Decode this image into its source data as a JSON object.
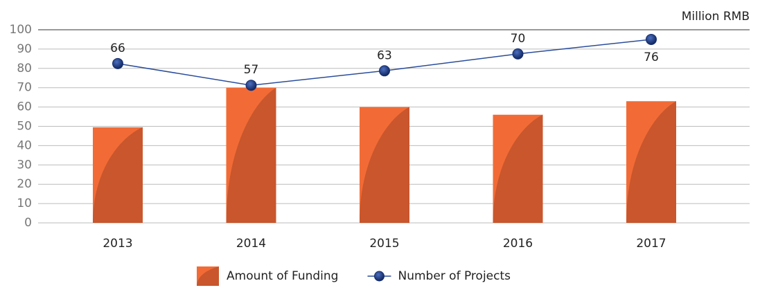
{
  "chart_data": {
    "type": "bar",
    "unit_label": "Million RMB",
    "categories": [
      "2013",
      "2014",
      "2015",
      "2016",
      "2017"
    ],
    "series": [
      {
        "name": "Amount of Funding",
        "type": "bar",
        "color": "#f26b36",
        "shade": "#c9562c",
        "values": [
          49.5,
          70,
          60,
          56,
          63
        ]
      },
      {
        "name": "Number of Projects",
        "type": "line",
        "axis": "y2",
        "color": "#2a4c9a",
        "marker": "#16306f",
        "values": [
          66,
          57,
          63,
          70,
          76
        ]
      }
    ],
    "ylim": [
      0,
      100
    ],
    "yticks": [
      0,
      10,
      20,
      30,
      40,
      50,
      60,
      70,
      80,
      90,
      100
    ],
    "y2lim": [
      0,
      80
    ],
    "grid": true,
    "legend": "bottom"
  }
}
